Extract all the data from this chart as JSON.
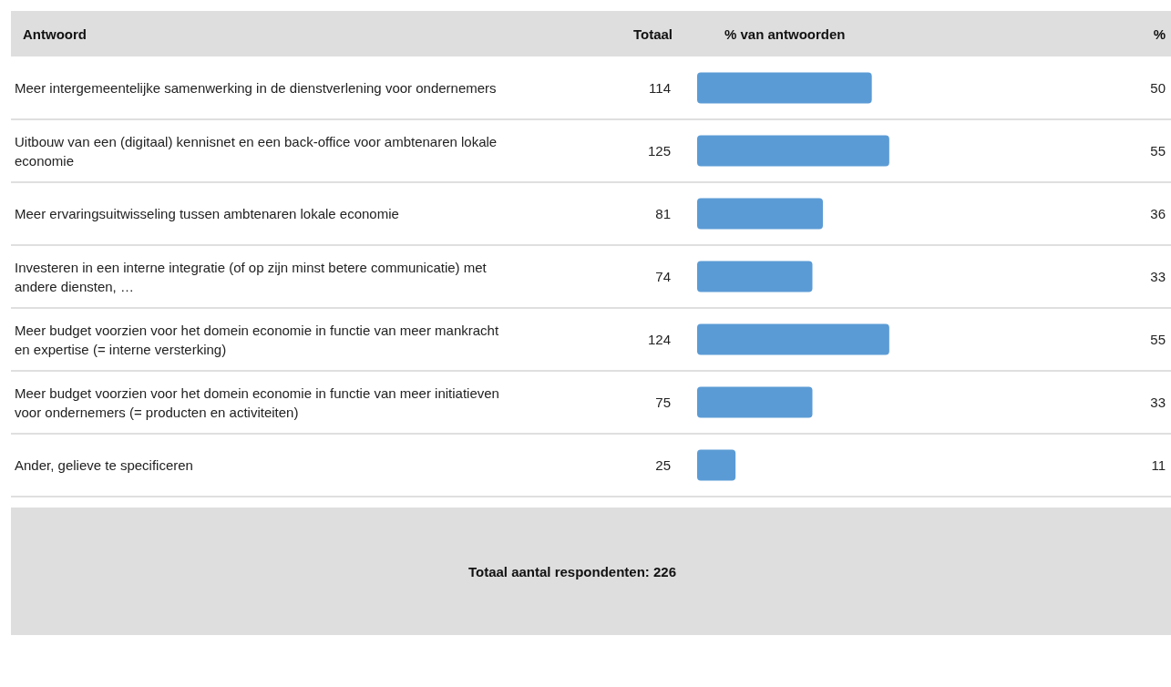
{
  "chart_data": {
    "type": "bar",
    "orientation": "horizontal",
    "ylabel": "Antwoord",
    "xlabel": "% van antwoorden",
    "categories": [
      "Meer intergemeentelijke samenwerking in de dienstverlening voor ondernemers",
      "Uitbouw van een (digitaal) kennisnet en een back-office voor ambtenaren lokale economie",
      "Meer ervaringsuitwisseling tussen ambtenaren lokale economie",
      "Investeren in een interne integratie (of op zijn minst betere communicatie) met andere diensten, …",
      "Meer budget voorzien voor het domein economie in functie van meer mankracht en expertise (= interne versterking)",
      "Meer budget voorzien voor het domein economie in functie van meer initiatieven voor ondernemers (= producten en activiteiten)",
      "Ander, gelieve te specificeren"
    ],
    "values": [
      50,
      55,
      36,
      33,
      55,
      33,
      11
    ],
    "color": "#5b9bd5",
    "data_labels": true,
    "annotations": [
      "Totaal",
      "%",
      "114",
      "125",
      "81",
      "74",
      "124",
      "75",
      "25",
      "Totaal aantal respondenten: 226"
    ]
  }
}
